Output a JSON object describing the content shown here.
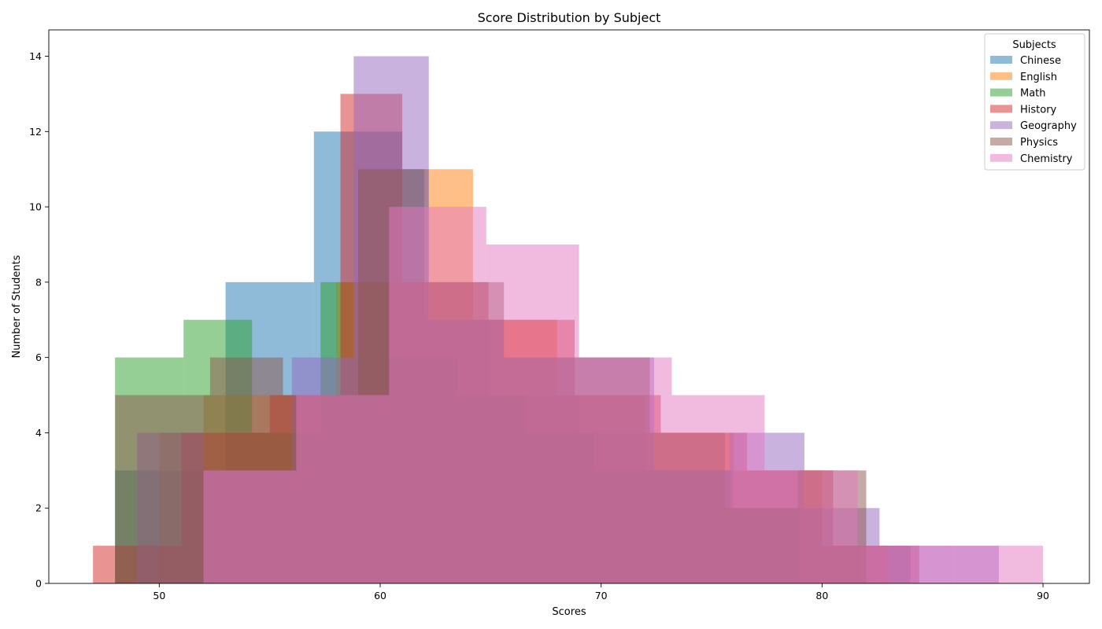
{
  "chart_data": {
    "type": "histogram",
    "title": "Score Distribution by Subject",
    "xlabel": "Scores",
    "ylabel": "Number of Students",
    "xlim": [
      45,
      92.1
    ],
    "ylim": [
      0,
      14.7
    ],
    "xticks": [
      50,
      60,
      70,
      80,
      90
    ],
    "yticks": [
      0,
      2,
      4,
      6,
      8,
      10,
      12,
      14
    ],
    "legend_title": "Subjects",
    "legend_position": "top-right",
    "grid": false,
    "bar_opacity": 0.5,
    "series": [
      {
        "name": "Chinese",
        "color": "#1f77b4",
        "bins": [
          {
            "x0": 48.0,
            "x1": 51.0,
            "count": 3
          },
          {
            "x0": 51.0,
            "x1": 53.0,
            "count": 3
          },
          {
            "x0": 53.0,
            "x1": 57.0,
            "count": 8
          },
          {
            "x0": 57.0,
            "x1": 58.0,
            "count": 12
          },
          {
            "x0": 58.0,
            "x1": 61.0,
            "count": 12
          },
          {
            "x0": 61.0,
            "x1": 62.0,
            "count": 11
          },
          {
            "x0": 62.0,
            "x1": 65.0,
            "count": 7
          },
          {
            "x0": 65.0,
            "x1": 69.0,
            "count": 5
          },
          {
            "x0": 69.0,
            "x1": 72.0,
            "count": 4
          },
          {
            "x0": 72.0,
            "x1": 76.0,
            "count": 3
          },
          {
            "x0": 76.0,
            "x1": 80.0,
            "count": 2
          },
          {
            "x0": 80.0,
            "x1": 84.0,
            "count": 1
          }
        ]
      },
      {
        "name": "English",
        "color": "#ff7f0e",
        "bins": [
          {
            "x0": 50.0,
            "x1": 52.0,
            "count": 4
          },
          {
            "x0": 52.0,
            "x1": 55.4,
            "count": 5
          },
          {
            "x0": 55.4,
            "x1": 58.0,
            "count": 5
          },
          {
            "x0": 58.0,
            "x1": 62.2,
            "count": 8
          },
          {
            "x0": 62.2,
            "x1": 64.2,
            "count": 11
          },
          {
            "x0": 64.2,
            "x1": 68.0,
            "count": 7
          },
          {
            "x0": 68.0,
            "x1": 72.0,
            "count": 5
          },
          {
            "x0": 72.0,
            "x1": 76.0,
            "count": 4
          },
          {
            "x0": 76.0,
            "x1": 80.0,
            "count": 3
          },
          {
            "x0": 80.0,
            "x1": 83.0,
            "count": 1
          }
        ]
      },
      {
        "name": "Math",
        "color": "#2ca02c",
        "bins": [
          {
            "x0": 48.0,
            "x1": 51.1,
            "count": 6
          },
          {
            "x0": 51.1,
            "x1": 54.2,
            "count": 7
          },
          {
            "x0": 54.2,
            "x1": 57.3,
            "count": 4
          },
          {
            "x0": 57.3,
            "x1": 60.4,
            "count": 8
          },
          {
            "x0": 60.4,
            "x1": 63.5,
            "count": 6
          },
          {
            "x0": 63.5,
            "x1": 66.6,
            "count": 5
          },
          {
            "x0": 66.6,
            "x1": 69.7,
            "count": 4
          },
          {
            "x0": 69.7,
            "x1": 72.8,
            "count": 3
          },
          {
            "x0": 72.8,
            "x1": 75.9,
            "count": 3
          },
          {
            "x0": 75.9,
            "x1": 79.0,
            "count": 2
          }
        ]
      },
      {
        "name": "History",
        "color": "#d62728",
        "bins": [
          {
            "x0": 47.0,
            "x1": 48.0,
            "count": 1
          },
          {
            "x0": 48.0,
            "x1": 51.0,
            "count": 1
          },
          {
            "x0": 51.0,
            "x1": 55.0,
            "count": 4
          },
          {
            "x0": 55.0,
            "x1": 58.2,
            "count": 5
          },
          {
            "x0": 58.2,
            "x1": 61.0,
            "count": 13
          },
          {
            "x0": 61.0,
            "x1": 64.9,
            "count": 8
          },
          {
            "x0": 64.9,
            "x1": 68.8,
            "count": 7
          },
          {
            "x0": 68.8,
            "x1": 72.7,
            "count": 5
          },
          {
            "x0": 72.7,
            "x1": 76.6,
            "count": 4
          },
          {
            "x0": 76.6,
            "x1": 80.5,
            "count": 3
          },
          {
            "x0": 80.5,
            "x1": 84.4,
            "count": 1
          }
        ]
      },
      {
        "name": "Geography",
        "color": "#9467bd",
        "bins": [
          {
            "x0": 49.0,
            "x1": 52.0,
            "count": 4
          },
          {
            "x0": 52.0,
            "x1": 56.0,
            "count": 3
          },
          {
            "x0": 56.0,
            "x1": 58.8,
            "count": 6
          },
          {
            "x0": 58.8,
            "x1": 62.2,
            "count": 14
          },
          {
            "x0": 62.2,
            "x1": 65.6,
            "count": 7
          },
          {
            "x0": 65.6,
            "x1": 69.0,
            "count": 6
          },
          {
            "x0": 69.0,
            "x1": 72.4,
            "count": 6
          },
          {
            "x0": 72.4,
            "x1": 75.8,
            "count": 3
          },
          {
            "x0": 75.8,
            "x1": 79.2,
            "count": 4
          },
          {
            "x0": 79.2,
            "x1": 82.6,
            "count": 2
          },
          {
            "x0": 82.6,
            "x1": 86.0,
            "count": 1
          },
          {
            "x0": 86.0,
            "x1": 88.0,
            "count": 1
          }
        ]
      },
      {
        "name": "Physics",
        "color": "#8c564b",
        "bins": [
          {
            "x0": 48.0,
            "x1": 52.3,
            "count": 5
          },
          {
            "x0": 52.3,
            "x1": 55.6,
            "count": 6
          },
          {
            "x0": 55.6,
            "x1": 59.0,
            "count": 5
          },
          {
            "x0": 59.0,
            "x1": 62.2,
            "count": 11
          },
          {
            "x0": 62.2,
            "x1": 65.6,
            "count": 8
          },
          {
            "x0": 65.6,
            "x1": 68.9,
            "count": 6
          },
          {
            "x0": 68.9,
            "x1": 72.2,
            "count": 6
          },
          {
            "x0": 72.2,
            "x1": 75.6,
            "count": 4
          },
          {
            "x0": 75.6,
            "x1": 78.9,
            "count": 2
          },
          {
            "x0": 78.9,
            "x1": 82.0,
            "count": 3
          }
        ]
      },
      {
        "name": "Chemistry",
        "color": "#e377c2",
        "bins": [
          {
            "x0": 52.0,
            "x1": 56.2,
            "count": 3
          },
          {
            "x0": 56.2,
            "x1": 60.4,
            "count": 5
          },
          {
            "x0": 60.4,
            "x1": 64.8,
            "count": 10
          },
          {
            "x0": 64.8,
            "x1": 69.0,
            "count": 9
          },
          {
            "x0": 69.0,
            "x1": 73.2,
            "count": 6
          },
          {
            "x0": 73.2,
            "x1": 77.4,
            "count": 5
          },
          {
            "x0": 77.4,
            "x1": 81.6,
            "count": 3
          },
          {
            "x0": 81.6,
            "x1": 85.8,
            "count": 1
          },
          {
            "x0": 85.8,
            "x1": 88.0,
            "count": 1
          },
          {
            "x0": 88.0,
            "x1": 90.0,
            "count": 1
          }
        ]
      }
    ]
  }
}
